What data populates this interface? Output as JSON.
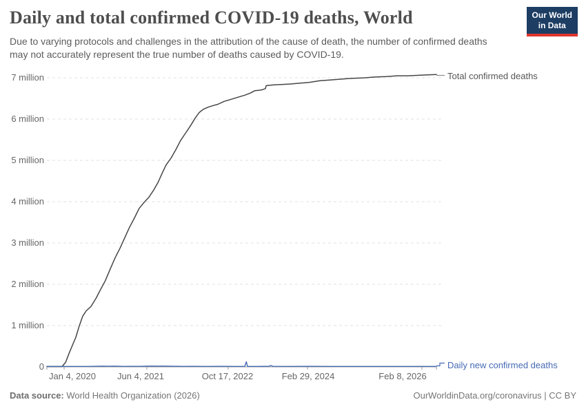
{
  "header": {
    "title": "Daily and total confirmed COVID-19 deaths, World",
    "subtitle": "Due to varying protocols and challenges in the attribution of the cause of death, the number of confirmed deaths may not accurately represent the true number of deaths caused by COVID-19.",
    "logo": {
      "line1": "Our World",
      "line2": "in Data",
      "bg_color": "#1d3d63",
      "accent_color": "#e0342c"
    }
  },
  "chart_data": {
    "type": "line",
    "title": "Daily and total confirmed COVID-19 deaths, World",
    "xlabel": "",
    "ylabel": "",
    "grid": true,
    "x_axis": {
      "ticks": [
        "Jan 4, 2020",
        "Jun 4, 2021",
        "Oct 17, 2022",
        "Feb 29, 2024",
        "Feb 8, 2026"
      ],
      "range": [
        "Jan 4, 2020",
        "May 2026"
      ]
    },
    "y_axis": {
      "ticks": [
        "0",
        "1 million",
        "2 million",
        "3 million",
        "4 million",
        "5 million",
        "6 million",
        "7 million"
      ],
      "unit": "deaths",
      "range_millions": [
        0,
        7
      ]
    },
    "legend_position": "end-of-line labels",
    "series": [
      {
        "name": "Total confirmed deaths",
        "color": "#454545",
        "unit": "millions of deaths",
        "final_value_millions": 7.07,
        "points": [
          [
            0.0,
            0.0
          ],
          [
            0.039,
            0.0
          ],
          [
            0.048,
            0.1
          ],
          [
            0.057,
            0.32
          ],
          [
            0.065,
            0.5
          ],
          [
            0.074,
            0.7
          ],
          [
            0.083,
            0.98
          ],
          [
            0.092,
            1.22
          ],
          [
            0.101,
            1.35
          ],
          [
            0.113,
            1.45
          ],
          [
            0.126,
            1.65
          ],
          [
            0.138,
            1.87
          ],
          [
            0.15,
            2.08
          ],
          [
            0.163,
            2.37
          ],
          [
            0.175,
            2.63
          ],
          [
            0.188,
            2.87
          ],
          [
            0.2,
            3.12
          ],
          [
            0.212,
            3.37
          ],
          [
            0.225,
            3.6
          ],
          [
            0.237,
            3.83
          ],
          [
            0.25,
            3.98
          ],
          [
            0.262,
            4.1
          ],
          [
            0.274,
            4.27
          ],
          [
            0.285,
            4.45
          ],
          [
            0.296,
            4.68
          ],
          [
            0.306,
            4.88
          ],
          [
            0.319,
            5.05
          ],
          [
            0.331,
            5.25
          ],
          [
            0.343,
            5.47
          ],
          [
            0.356,
            5.65
          ],
          [
            0.368,
            5.82
          ],
          [
            0.381,
            6.02
          ],
          [
            0.391,
            6.15
          ],
          [
            0.402,
            6.23
          ],
          [
            0.414,
            6.28
          ],
          [
            0.427,
            6.32
          ],
          [
            0.439,
            6.35
          ],
          [
            0.455,
            6.42
          ],
          [
            0.473,
            6.47
          ],
          [
            0.49,
            6.52
          ],
          [
            0.508,
            6.57
          ],
          [
            0.522,
            6.62
          ],
          [
            0.534,
            6.68
          ],
          [
            0.545,
            6.69
          ],
          [
            0.552,
            6.7
          ],
          [
            0.558,
            6.72
          ],
          [
            0.561,
            6.73
          ],
          [
            0.563,
            6.8
          ],
          [
            0.572,
            6.81
          ],
          [
            0.584,
            6.82
          ],
          [
            0.602,
            6.83
          ],
          [
            0.623,
            6.84
          ],
          [
            0.648,
            6.86
          ],
          [
            0.673,
            6.88
          ],
          [
            0.701,
            6.92
          ],
          [
            0.729,
            6.94
          ],
          [
            0.757,
            6.96
          ],
          [
            0.786,
            6.98
          ],
          [
            0.814,
            6.99
          ],
          [
            0.842,
            7.01
          ],
          [
            0.871,
            7.02
          ],
          [
            0.899,
            7.04
          ],
          [
            0.927,
            7.04
          ],
          [
            0.949,
            7.05
          ],
          [
            0.973,
            7.06
          ],
          [
            1.0,
            7.07
          ]
        ]
      },
      {
        "name": "Daily new confirmed deaths",
        "color": "#4569b4",
        "unit": "millions of deaths per day",
        "points": [
          [
            0.0,
            0.003
          ],
          [
            0.057,
            0.003
          ],
          [
            0.11,
            0.004
          ],
          [
            0.127,
            0.006
          ],
          [
            0.145,
            0.009
          ],
          [
            0.159,
            0.006
          ],
          [
            0.172,
            0.009
          ],
          [
            0.184,
            0.006
          ],
          [
            0.198,
            0.004
          ],
          [
            0.216,
            0.005
          ],
          [
            0.242,
            0.005
          ],
          [
            0.255,
            0.008
          ],
          [
            0.269,
            0.011
          ],
          [
            0.283,
            0.008
          ],
          [
            0.297,
            0.011
          ],
          [
            0.311,
            0.008
          ],
          [
            0.326,
            0.006
          ],
          [
            0.349,
            0.004
          ],
          [
            0.375,
            0.005
          ],
          [
            0.411,
            0.004
          ],
          [
            0.446,
            0.005
          ],
          [
            0.481,
            0.004
          ],
          [
            0.508,
            0.004
          ],
          [
            0.512,
            0.115
          ],
          [
            0.515,
            0.004
          ],
          [
            0.543,
            0.004
          ],
          [
            0.57,
            0.005
          ],
          [
            0.575,
            0.025
          ],
          [
            0.58,
            0.005
          ],
          [
            0.623,
            0.004
          ],
          [
            0.676,
            0.005
          ],
          [
            0.729,
            0.004
          ],
          [
            0.8,
            0.003
          ],
          [
            0.871,
            0.003
          ],
          [
            0.942,
            0.003
          ],
          [
            1.0,
            0.003
          ]
        ]
      }
    ]
  },
  "footer": {
    "source_label": "Data source:",
    "source": "World Health Organization (2026)",
    "credit": "OurWorldinData.org/coronavirus | CC BY"
  }
}
